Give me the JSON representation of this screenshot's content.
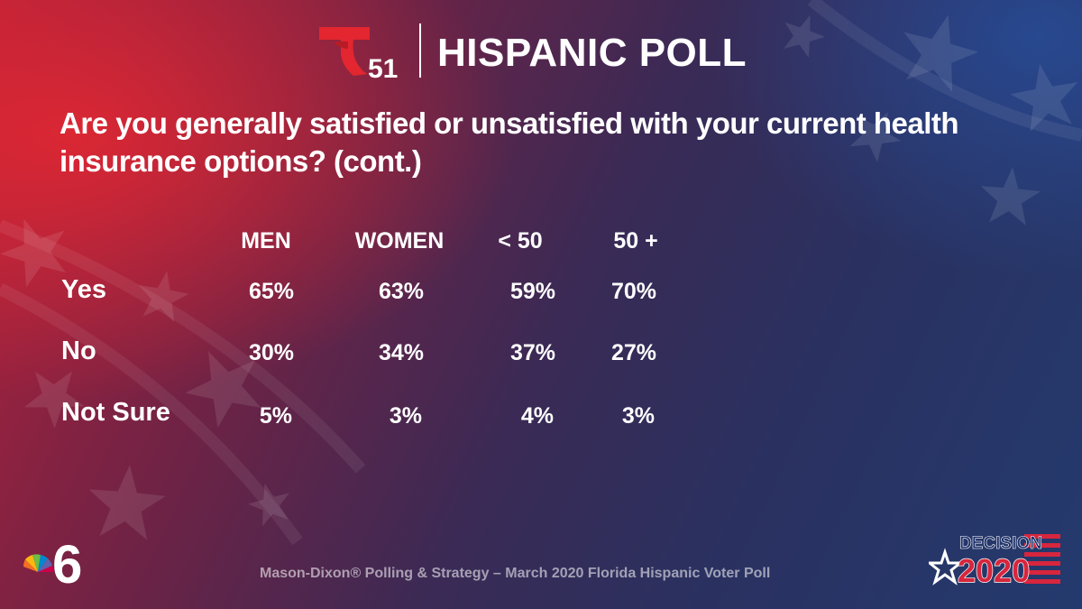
{
  "brand": {
    "logo_number": "51",
    "title": "HISPANIC POLL"
  },
  "question": "Are you generally satisfied or unsatisfied with your current health insurance options? (cont.)",
  "chart_data": {
    "type": "table",
    "columns": [
      "MEN",
      "WOMEN",
      "< 50",
      "50 +"
    ],
    "rows": [
      {
        "label": "Yes",
        "values": [
          "65%",
          "63%",
          "59%",
          "70%"
        ]
      },
      {
        "label": "No",
        "values": [
          "30%",
          "34%",
          "37%",
          "27%"
        ]
      },
      {
        "label": "Not Sure",
        "values": [
          "5%",
          "3%",
          "4%",
          "3%"
        ]
      }
    ]
  },
  "footer": {
    "source": "Mason-Dixon® Polling & Strategy – March 2020 Florida Hispanic Voter Poll",
    "station_number": "6",
    "decision_word": "DECISION",
    "decision_year": "2020"
  },
  "colors": {
    "telemundo_red": "#e3262f",
    "decision_red": "#d7263d",
    "decision_navy": "#1c2f6b",
    "source_text": "#c9c3d0"
  }
}
